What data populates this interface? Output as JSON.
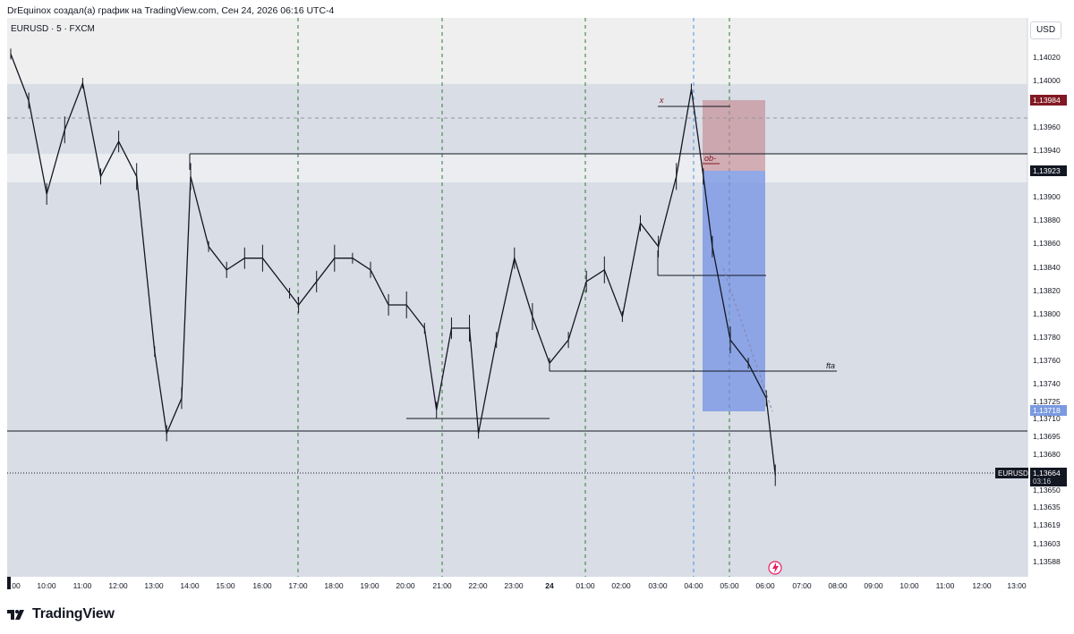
{
  "header": {
    "attribution": "DrEquinox создал(а) график на TradingView.com, Сен 24, 2026 06:16 UTC-4"
  },
  "toolbar": {
    "symbol": "EURUSD · 5 · FXCM",
    "currency": "USD"
  },
  "footer": {
    "brand": "TradingView",
    "logo_icon": "tradingview-logo-icon"
  },
  "chart_data": {
    "type": "candlestick",
    "symbol": "EURUSD",
    "interval": "5",
    "source": "FXCM",
    "currency": "USD",
    "y_ticks": [
      "1,14020",
      "1,14000",
      "1,13960",
      "1,13940",
      "1,13900",
      "1,13880",
      "1,13860",
      "1,13840",
      "1,13820",
      "1,13800",
      "1,13780",
      "1,13760",
      "1,13740",
      "1,13725",
      "1,13710",
      "1,13695",
      "1,13680",
      "1,13650",
      "1,13635",
      "1,13619",
      "1,13603",
      "1,13588"
    ],
    "x_ticks": [
      "00",
      "10:00",
      "11:00",
      "12:00",
      "13:00",
      "14:00",
      "15:00",
      "16:00",
      "17:00",
      "18:00",
      "19:00",
      "20:00",
      "21:00",
      "22:00",
      "23:00",
      "24",
      "01:00",
      "02:00",
      "03:00",
      "04:00",
      "05:00",
      "06:00",
      "07:00",
      "08:00",
      "09:00",
      "10:00",
      "11:00",
      "12:00",
      "13:00"
    ],
    "price_tags": [
      {
        "label": "1,13984",
        "color": "#801922"
      },
      {
        "label": "1,13923",
        "color": "#131722"
      },
      {
        "label": "1,13718",
        "color": "#7a9ae0"
      }
    ],
    "last_price": {
      "symbol": "EURUSD",
      "price": "1,13664",
      "countdown": "03:16"
    },
    "annotations": [
      "x",
      "ob-",
      "fta"
    ],
    "trend_path": [
      {
        "time": "09:00",
        "price": 1.14025
      },
      {
        "time": "09:30",
        "price": 1.13985
      },
      {
        "time": "10:00",
        "price": 1.13905
      },
      {
        "time": "10:30",
        "price": 1.1396
      },
      {
        "time": "11:00",
        "price": 1.14
      },
      {
        "time": "11:30",
        "price": 1.1392
      },
      {
        "time": "12:00",
        "price": 1.1395
      },
      {
        "time": "12:30",
        "price": 1.1392
      },
      {
        "time": "13:00",
        "price": 1.1377
      },
      {
        "time": "13:20",
        "price": 1.137
      },
      {
        "time": "13:45",
        "price": 1.1373
      },
      {
        "time": "14:00",
        "price": 1.1392
      },
      {
        "time": "14:30",
        "price": 1.1386
      },
      {
        "time": "15:00",
        "price": 1.1384
      },
      {
        "time": "15:30",
        "price": 1.1385
      },
      {
        "time": "16:00",
        "price": 1.1385
      },
      {
        "time": "16:45",
        "price": 1.1382
      },
      {
        "time": "17:00",
        "price": 1.1381
      },
      {
        "time": "17:30",
        "price": 1.1383
      },
      {
        "time": "18:00",
        "price": 1.1385
      },
      {
        "time": "18:30",
        "price": 1.1385
      },
      {
        "time": "19:00",
        "price": 1.1384
      },
      {
        "time": "19:30",
        "price": 1.1381
      },
      {
        "time": "20:00",
        "price": 1.1381
      },
      {
        "time": "20:30",
        "price": 1.1379
      },
      {
        "time": "20:50",
        "price": 1.1372
      },
      {
        "time": "21:15",
        "price": 1.1379
      },
      {
        "time": "21:45",
        "price": 1.1379
      },
      {
        "time": "22:00",
        "price": 1.137
      },
      {
        "time": "22:30",
        "price": 1.1378
      },
      {
        "time": "23:00",
        "price": 1.1385
      },
      {
        "time": "23:30",
        "price": 1.138
      },
      {
        "time": "24",
        "price": 1.1376
      },
      {
        "time": "00:30",
        "price": 1.1378
      },
      {
        "time": "01:00",
        "price": 1.1383
      },
      {
        "time": "01:30",
        "price": 1.1384
      },
      {
        "time": "02:00",
        "price": 1.138
      },
      {
        "time": "02:30",
        "price": 1.1388
      },
      {
        "time": "03:00",
        "price": 1.1386
      },
      {
        "time": "03:30",
        "price": 1.1392
      },
      {
        "time": "03:55",
        "price": 1.13995
      },
      {
        "time": "04:15",
        "price": 1.1392
      },
      {
        "time": "04:30",
        "price": 1.1386
      },
      {
        "time": "05:00",
        "price": 1.1378
      },
      {
        "time": "05:30",
        "price": 1.1376
      },
      {
        "time": "06:00",
        "price": 1.1373
      },
      {
        "time": "06:15",
        "price": 1.13664
      }
    ]
  }
}
